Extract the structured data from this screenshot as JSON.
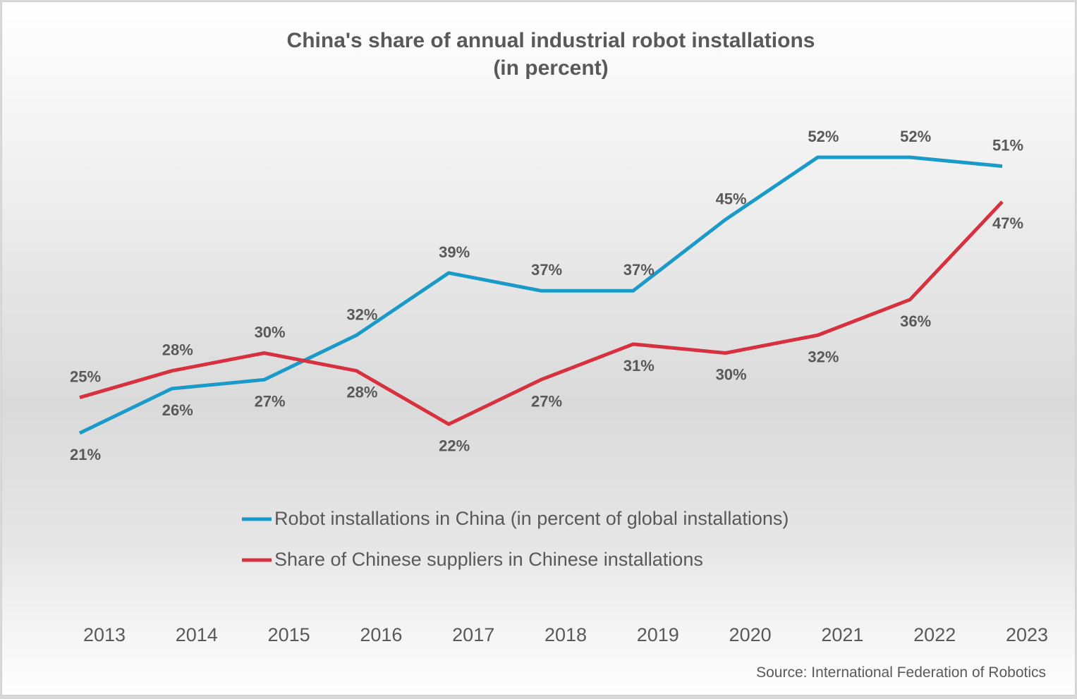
{
  "chart_data": {
    "type": "line",
    "title": [
      "China's share of annual industrial robot installations",
      "(in percent)"
    ],
    "xlabel": "",
    "ylabel": "",
    "categories": [
      "2013",
      "2014",
      "2015",
      "2016",
      "2017",
      "2018",
      "2019",
      "2020",
      "2021",
      "2022",
      "2023"
    ],
    "series": [
      {
        "name": "Robot installations in China (in percent of global installations)",
        "color": "#1a9ac9",
        "values": [
          21,
          26,
          27,
          32,
          39,
          37,
          37,
          45,
          52,
          52,
          51
        ],
        "labels": [
          "21%",
          "26%",
          "27%",
          "32%",
          "39%",
          "37%",
          "37%",
          "45%",
          "52%",
          "52%",
          "51%"
        ],
        "label_position": [
          "below",
          "below",
          "below",
          "above",
          "above",
          "above",
          "above",
          "above",
          "above",
          "above",
          "above"
        ]
      },
      {
        "name": "Share of Chinese suppliers in Chinese installations",
        "color": "#d7303f",
        "values": [
          25,
          28,
          30,
          28,
          22,
          27,
          31,
          30,
          32,
          36,
          47
        ],
        "labels": [
          "25%",
          "28%",
          "30%",
          "28%",
          "22%",
          "27%",
          "31%",
          "30%",
          "32%",
          "36%",
          "47%"
        ],
        "label_position": [
          "above",
          "above",
          "above",
          "below",
          "below",
          "below",
          "below",
          "below",
          "below",
          "below",
          "below"
        ]
      }
    ],
    "ylim": [
      15,
      55
    ],
    "grid": false,
    "legend_position": "bottom-center",
    "source": "Source: International  Federation of Robotics"
  }
}
